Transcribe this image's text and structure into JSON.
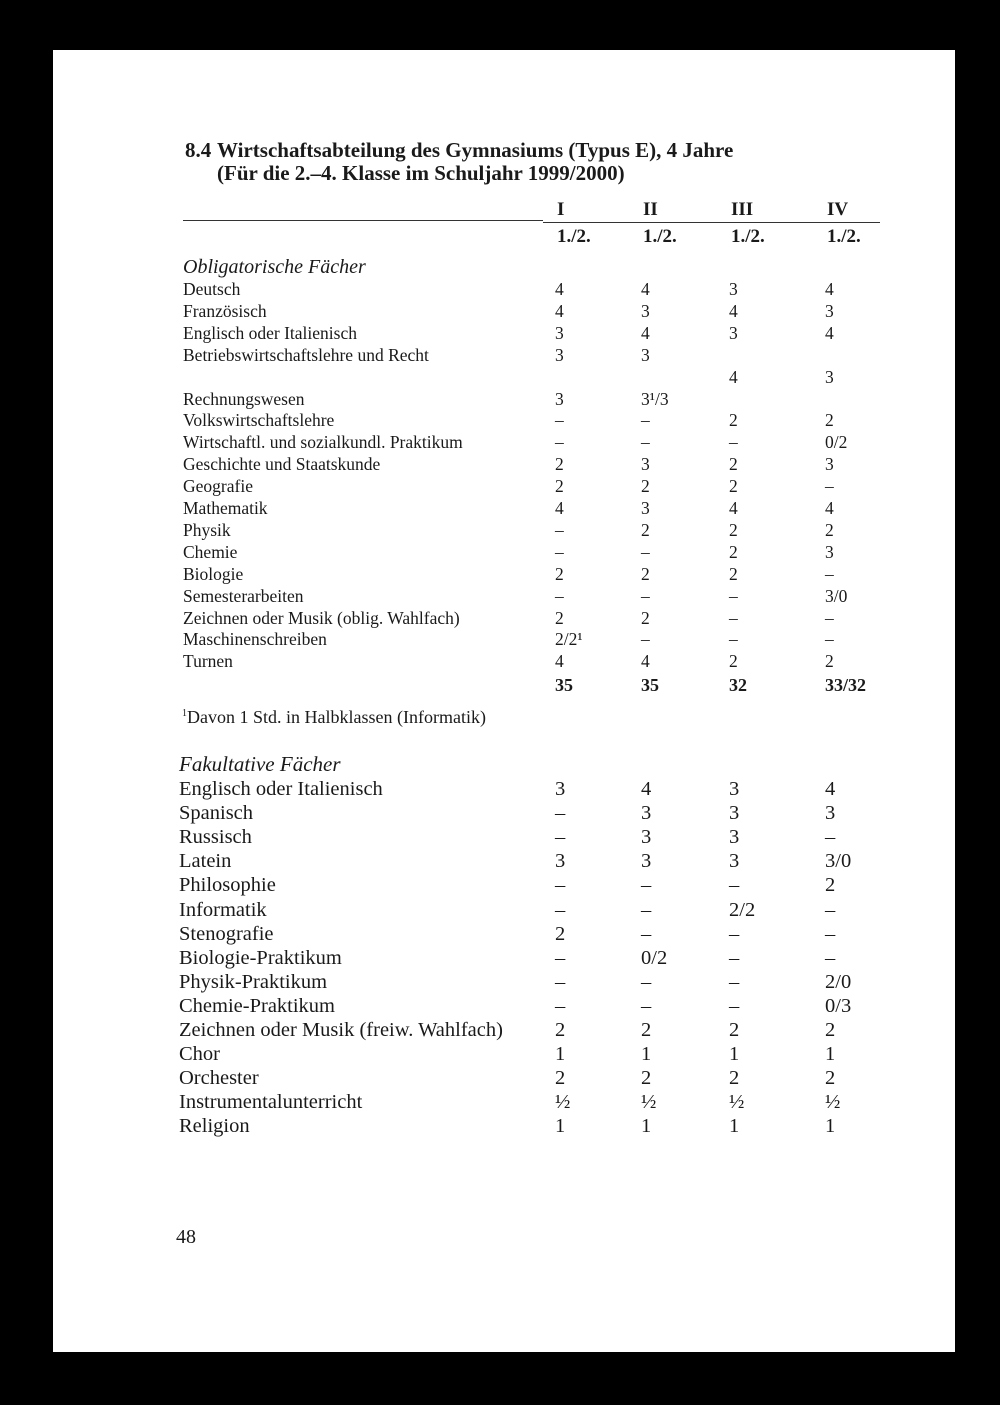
{
  "heading": {
    "number": "8.4",
    "title": "Wirtschaftsabteilung des Gymnasiums (Typus E), 4 Jahre",
    "subtitle": "(Für die 2.–4. Klasse im Schuljahr 1999/2000)"
  },
  "columns": [
    {
      "year": "I",
      "semester": "1./2."
    },
    {
      "year": "II",
      "semester": "1./2."
    },
    {
      "year": "III",
      "semester": "1./2."
    },
    {
      "year": "IV",
      "semester": "1./2."
    }
  ],
  "obligatory": {
    "label": "Obligatorische Fächer",
    "rows": [
      [
        "Deutsch",
        "4",
        "4",
        "3",
        "4"
      ],
      [
        "Französisch",
        "4",
        "3",
        "4",
        "3"
      ],
      [
        "Englisch oder Italienisch",
        "3",
        "4",
        "3",
        "4"
      ],
      [
        "Betriebswirtschaftslehre und Recht",
        "3",
        "3",
        "",
        ""
      ],
      [
        "",
        "",
        "",
        "4",
        "3"
      ],
      [
        "Rechnungswesen",
        "3",
        "3¹/3",
        "",
        ""
      ],
      [
        "Volkswirtschaftslehre",
        "–",
        "–",
        "2",
        "2"
      ],
      [
        "Wirtschaftl. und sozialkundl. Praktikum",
        "–",
        "–",
        "–",
        "0/2"
      ],
      [
        "Geschichte und Staatskunde",
        "2",
        "3",
        "2",
        "3"
      ],
      [
        "Geografie",
        "2",
        "2",
        "2",
        "–"
      ],
      [
        "Mathematik",
        "4",
        "3",
        "4",
        "4"
      ],
      [
        "Physik",
        "–",
        "2",
        "2",
        "2"
      ],
      [
        "Chemie",
        "–",
        "–",
        "2",
        "3"
      ],
      [
        "Biologie",
        "2",
        "2",
        "2",
        "–"
      ],
      [
        "Semesterarbeiten",
        "–",
        "–",
        "–",
        "3/0"
      ],
      [
        "Zeichnen oder Musik (oblig. Wahlfach)",
        "2",
        "2",
        "–",
        "–"
      ],
      [
        "Maschinenschreiben",
        "2/2¹",
        "–",
        "–",
        "–"
      ],
      [
        "Turnen",
        "4",
        "4",
        "2",
        "2"
      ]
    ],
    "totals": [
      "35",
      "35",
      "32",
      "33/32"
    ]
  },
  "footnote": {
    "marker": "1",
    "text": "Davon 1 Std. in Halbklassen (Informatik)"
  },
  "optional": {
    "label": "Fakultative Fächer",
    "rows": [
      [
        "Englisch oder Italienisch",
        "3",
        "4",
        "3",
        "4"
      ],
      [
        "Spanisch",
        "–",
        "3",
        "3",
        "3"
      ],
      [
        "Russisch",
        "–",
        "3",
        "3",
        "–"
      ],
      [
        "Latein",
        "3",
        "3",
        "3",
        "3/0"
      ],
      [
        "Philosophie",
        "–",
        "–",
        "–",
        "2"
      ],
      [
        "Informatik",
        "–",
        "–",
        "2/2",
        "–"
      ],
      [
        "Stenografie",
        "2",
        "–",
        "–",
        "–"
      ],
      [
        "Biologie-Praktikum",
        "–",
        "0/2",
        "–",
        "–"
      ],
      [
        "Physik-Praktikum",
        "–",
        "–",
        "–",
        "2/0"
      ],
      [
        "Chemie-Praktikum",
        "–",
        "–",
        "–",
        "0/3"
      ],
      [
        "Zeichnen oder Musik (freiw. Wahlfach)",
        "2",
        "2",
        "2",
        "2"
      ],
      [
        "Chor",
        "1",
        "1",
        "1",
        "1"
      ],
      [
        "Orchester",
        "2",
        "2",
        "2",
        "2"
      ],
      [
        "Instrumentalunterricht",
        "½",
        "½",
        "½",
        "½"
      ],
      [
        "Religion",
        "1",
        "1",
        "1",
        "1"
      ]
    ]
  },
  "page_number": "48"
}
